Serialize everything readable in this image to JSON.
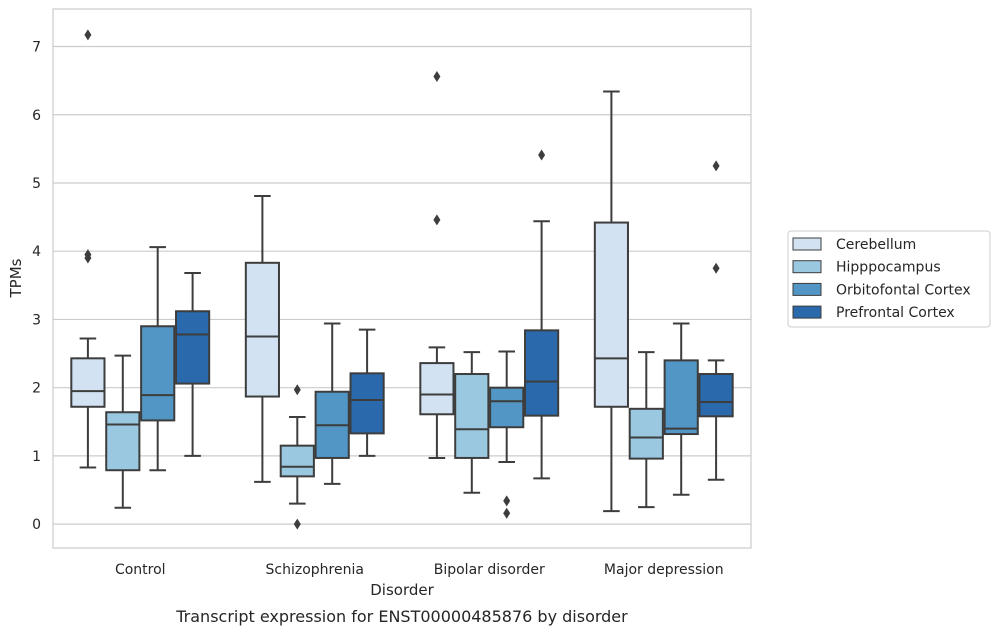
{
  "chart_data": {
    "type": "box",
    "caption": "Transcript expression for ENST00000485876 by disorder",
    "xlabel": "Disorder",
    "ylabel": "TPMs",
    "ylim": [
      -0.35,
      7.55
    ],
    "yticks": [
      0,
      1,
      2,
      3,
      4,
      5,
      6,
      7
    ],
    "grid": "horizontal",
    "legend_placement": "right",
    "categories": [
      "Control",
      "Schizophrenia",
      "Bipolar disorder",
      "Major depression"
    ],
    "series": [
      {
        "name": "Cerebellum",
        "color": "#d3e2f3",
        "boxes": [
          {
            "whisker_low": 0.83,
            "q1": 1.72,
            "median": 1.95,
            "q3": 2.43,
            "whisker_high": 2.72,
            "outliers": [
              3.9,
              3.95,
              7.17
            ]
          },
          {
            "whisker_low": 0.62,
            "q1": 1.87,
            "median": 2.75,
            "q3": 3.83,
            "whisker_high": 4.81,
            "outliers": []
          },
          {
            "whisker_low": 0.97,
            "q1": 1.61,
            "median": 1.9,
            "q3": 2.36,
            "whisker_high": 2.59,
            "outliers": [
              4.46,
              6.56
            ]
          },
          {
            "whisker_low": 0.19,
            "q1": 1.72,
            "median": 2.43,
            "q3": 4.42,
            "whisker_high": 6.34,
            "outliers": []
          }
        ]
      },
      {
        "name": "Hipppocampus",
        "color": "#9ac8e0",
        "boxes": [
          {
            "whisker_low": 0.24,
            "q1": 0.79,
            "median": 1.46,
            "q3": 1.64,
            "whisker_high": 2.47,
            "outliers": []
          },
          {
            "whisker_low": 0.3,
            "q1": 0.7,
            "median": 0.84,
            "q3": 1.15,
            "whisker_high": 1.57,
            "outliers": [
              0.0,
              1.97
            ]
          },
          {
            "whisker_low": 0.46,
            "q1": 0.97,
            "median": 1.39,
            "q3": 2.2,
            "whisker_high": 2.52,
            "outliers": []
          },
          {
            "whisker_low": 0.25,
            "q1": 0.96,
            "median": 1.27,
            "q3": 1.69,
            "whisker_high": 2.52,
            "outliers": []
          }
        ]
      },
      {
        "name": "Orbitofontal Cortex",
        "color": "#5296c5",
        "boxes": [
          {
            "whisker_low": 0.79,
            "q1": 1.52,
            "median": 1.89,
            "q3": 2.9,
            "whisker_high": 4.06,
            "outliers": []
          },
          {
            "whisker_low": 0.59,
            "q1": 0.97,
            "median": 1.45,
            "q3": 1.94,
            "whisker_high": 2.94,
            "outliers": []
          },
          {
            "whisker_low": 0.91,
            "q1": 1.42,
            "median": 1.8,
            "q3": 2.0,
            "whisker_high": 2.53,
            "outliers": [
              0.16,
              0.34
            ]
          },
          {
            "whisker_low": 0.43,
            "q1": 1.32,
            "median": 1.4,
            "q3": 2.4,
            "whisker_high": 2.94,
            "outliers": []
          }
        ]
      },
      {
        "name": "Prefrontal Cortex",
        "color": "#2a69ac",
        "boxes": [
          {
            "whisker_low": 1.0,
            "q1": 2.06,
            "median": 2.78,
            "q3": 3.12,
            "whisker_high": 3.68,
            "outliers": []
          },
          {
            "whisker_low": 1.0,
            "q1": 1.33,
            "median": 1.82,
            "q3": 2.21,
            "whisker_high": 2.85,
            "outliers": []
          },
          {
            "whisker_low": 0.67,
            "q1": 1.59,
            "median": 2.09,
            "q3": 2.84,
            "whisker_high": 4.44,
            "outliers": [
              5.41
            ]
          },
          {
            "whisker_low": 0.65,
            "q1": 1.58,
            "median": 1.79,
            "q3": 2.2,
            "whisker_high": 2.4,
            "outliers": [
              3.75,
              5.25
            ]
          }
        ]
      }
    ]
  }
}
